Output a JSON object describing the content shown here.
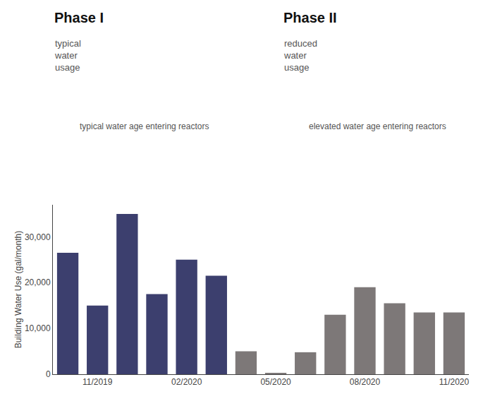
{
  "chart_data": {
    "type": "bar",
    "categories": [
      null,
      "11/2019",
      null,
      null,
      "02/2020",
      null,
      null,
      "05/2020",
      null,
      null,
      "08/2020",
      null,
      null,
      "11/2020"
    ],
    "values": [
      26500,
      15000,
      35000,
      17500,
      25000,
      21500,
      5000,
      200,
      4800,
      13000,
      19000,
      15500,
      13500,
      13500
    ],
    "colors": [
      "#3c3f6e",
      "#3c3f6e",
      "#3c3f6e",
      "#3c3f6e",
      "#3c3f6e",
      "#3c3f6e",
      "#7d7878",
      "#7d7878",
      "#7d7878",
      "#7d7878",
      "#7d7878",
      "#7d7878",
      "#7d7878",
      "#7d7878"
    ],
    "ylabel": "Building Water Use (gal/month)",
    "ylim": [
      0,
      37000
    ],
    "yticks": [
      0,
      {
        "value": 10000,
        "label": "10,000"
      },
      {
        "value": 20000,
        "label": "20,000"
      },
      {
        "value": 30000,
        "label": "30,000"
      }
    ],
    "grid": false,
    "annotations": [
      "Phase I",
      "typical\nwater\nusage",
      "typical water age entering reactors",
      "Phase II",
      "reduced\nwater\nusage",
      "elevated water age entering reactors"
    ]
  }
}
